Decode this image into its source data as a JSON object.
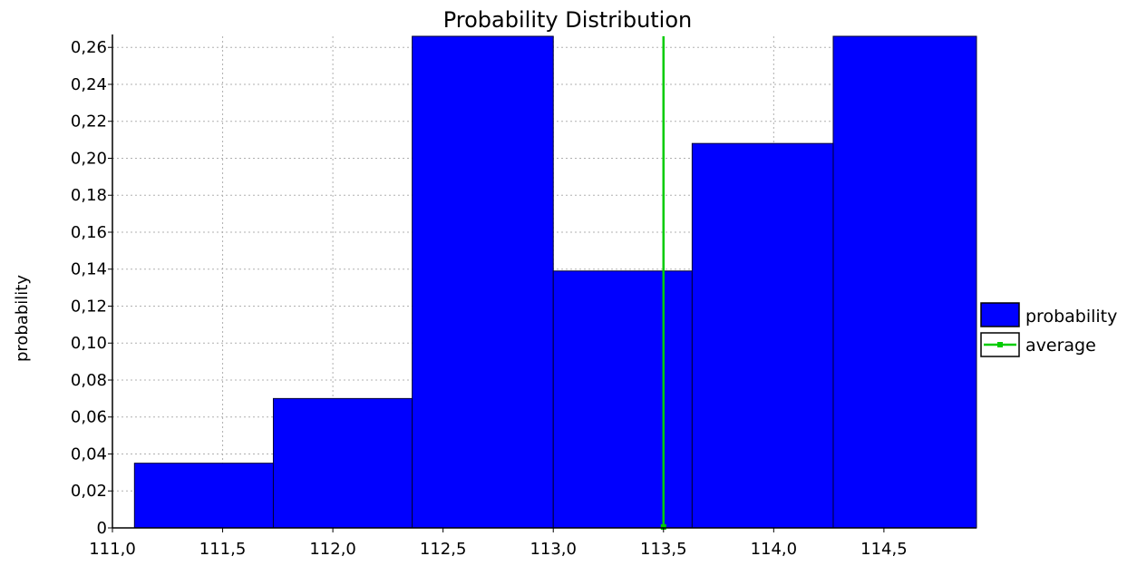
{
  "chart_data": {
    "type": "bar",
    "title": "Probability Distribution",
    "xlabel": "",
    "ylabel": "probability",
    "xlim": [
      111.0,
      114.92
    ],
    "ylim": [
      0,
      0.266
    ],
    "x_ticks": [
      111.0,
      111.5,
      112.0,
      112.5,
      113.0,
      113.5,
      114.0,
      114.5
    ],
    "x_tick_labels": [
      "111,0",
      "111,5",
      "112,0",
      "112,5",
      "113,0",
      "113,5",
      "114,0",
      "114,5"
    ],
    "y_ticks": [
      0,
      0.02,
      0.04,
      0.06,
      0.08,
      0.1,
      0.12,
      0.14,
      0.16,
      0.18,
      0.2,
      0.22,
      0.24,
      0.26
    ],
    "y_tick_labels": [
      "0",
      "0,02",
      "0,04",
      "0,06",
      "0,08",
      "0,10",
      "0,12",
      "0,14",
      "0,16",
      "0,18",
      "0,20",
      "0,22",
      "0,24",
      "0,26"
    ],
    "grid": true,
    "legend_position": "right",
    "series": [
      {
        "name": "probability",
        "color": "#0000ff",
        "bins": [
          {
            "x0": 111.1,
            "x1": 111.73,
            "value": 0.035
          },
          {
            "x0": 111.73,
            "x1": 112.36,
            "value": 0.07
          },
          {
            "x0": 112.36,
            "x1": 113.0,
            "value": 0.266
          },
          {
            "x0": 113.0,
            "x1": 113.63,
            "value": 0.139
          },
          {
            "x0": 113.63,
            "x1": 114.27,
            "value": 0.208
          },
          {
            "x0": 114.27,
            "x1": 114.92,
            "value": 0.266
          }
        ]
      },
      {
        "name": "average",
        "color": "#00cc00",
        "type": "vline",
        "x": 113.5
      }
    ]
  }
}
